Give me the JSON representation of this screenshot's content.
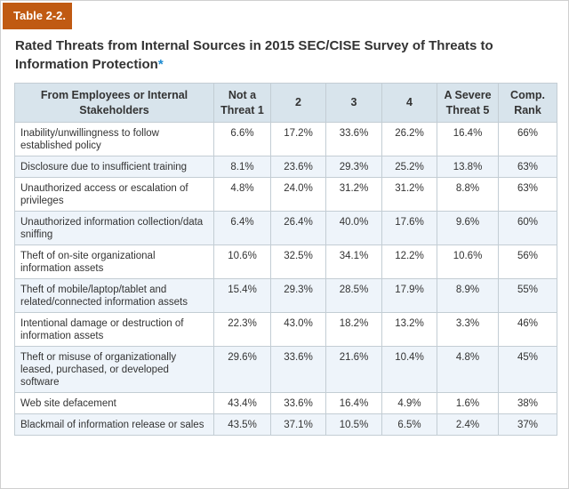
{
  "tag": "Table 2-2.",
  "title": "Rated Threats from Internal Sources in 2015 SEC/CISE Survey of Threats to Information Protection",
  "title_mark": "*",
  "headers": [
    "From Employees or Internal Stakeholders",
    "Not a Threat 1",
    "2",
    "3",
    "4",
    "A Severe Threat 5",
    "Comp. Rank"
  ],
  "rows": [
    {
      "label": "Inability/unwillingness to follow established policy",
      "values": [
        "6.6%",
        "17.2%",
        "33.6%",
        "26.2%",
        "16.4%",
        "66%"
      ]
    },
    {
      "label": "Disclosure due to insufficient training",
      "values": [
        "8.1%",
        "23.6%",
        "29.3%",
        "25.2%",
        "13.8%",
        "63%"
      ]
    },
    {
      "label": "Unauthorized access or escalation of privileges",
      "values": [
        "4.8%",
        "24.0%",
        "31.2%",
        "31.2%",
        "8.8%",
        "63%"
      ]
    },
    {
      "label": "Unauthorized information collection/data sniffing",
      "values": [
        "6.4%",
        "26.4%",
        "40.0%",
        "17.6%",
        "9.6%",
        "60%"
      ]
    },
    {
      "label": "Theft of on-site organizational information assets",
      "values": [
        "10.6%",
        "32.5%",
        "34.1%",
        "12.2%",
        "10.6%",
        "56%"
      ]
    },
    {
      "label": "Theft of mobile/laptop/tablet and related/connected information assets",
      "values": [
        "15.4%",
        "29.3%",
        "28.5%",
        "17.9%",
        "8.9%",
        "55%"
      ]
    },
    {
      "label": "Intentional damage or destruction of information assets",
      "values": [
        "22.3%",
        "43.0%",
        "18.2%",
        "13.2%",
        "3.3%",
        "46%"
      ]
    },
    {
      "label": "Theft or misuse of organizationally leased, purchased, or developed software",
      "values": [
        "29.6%",
        "33.6%",
        "21.6%",
        "10.4%",
        "4.8%",
        "45%"
      ]
    },
    {
      "label": "Web site defacement",
      "values": [
        "43.4%",
        "33.6%",
        "16.4%",
        "4.9%",
        "1.6%",
        "38%"
      ]
    },
    {
      "label": "Blackmail of information release or sales",
      "values": [
        "43.5%",
        "37.1%",
        "10.5%",
        "6.5%",
        "2.4%",
        "37%"
      ]
    }
  ],
  "colors": {
    "tag_bg": "#c05a12",
    "header_bg": "#d8e4ec",
    "stripe_bg": "#eef4fa",
    "asterisk": "#1d8bd1"
  }
}
